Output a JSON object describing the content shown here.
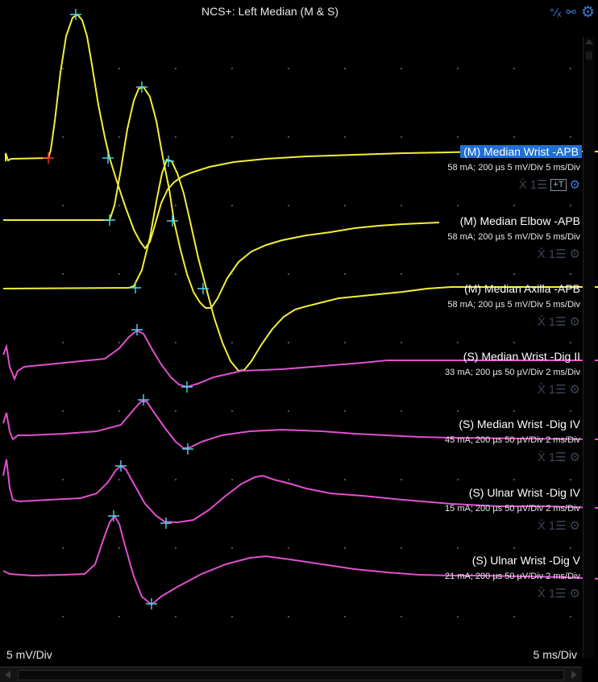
{
  "window": {
    "title": "NCS+: Left Median (M & S)"
  },
  "top_icons": [
    "cursor-plus-icon",
    "link-icon",
    "gear-icon"
  ],
  "colors": {
    "motor": "#f2ef3a",
    "sensory": "#e14fcf",
    "cursor": "#4fd6e8",
    "onset_mark": "#ff3030",
    "selected": "#1f6fd6"
  },
  "traces": [
    {
      "label": "(M)  Median  Wrist -APB",
      "params": "58 mA; 200 µs 5 mV/Div  5 ms/Div",
      "kind": "motor",
      "selected": true
    },
    {
      "label": "(M)  Median  Elbow -APB",
      "params": "58 mA; 200 µs 5 mV/Div  5 ms/Div",
      "kind": "motor",
      "selected": false
    },
    {
      "label": "(M)  Median  Axilla -APB",
      "params": "58 mA; 200 µs 5 mV/Div  5 ms/Div",
      "kind": "motor",
      "selected": false
    },
    {
      "label": "(S)  Median  Wrist -Dig II",
      "params": "33 mA; 200 µs 50 µV/Div  2 ms/Div",
      "kind": "sensory",
      "selected": false
    },
    {
      "label": "(S)  Median  Wrist -Dig IV",
      "params": "45 mA; 200 µs 50 µV/Div  2 ms/Div",
      "kind": "sensory",
      "selected": false
    },
    {
      "label": "(S)  Ulnar  Wrist -Dig IV",
      "params": "15 mA; 200 µs 50 µV/Div  2 ms/Div",
      "kind": "sensory",
      "selected": false
    },
    {
      "label": "(S)  Ulnar  Wrist -Dig V",
      "params": "21 mA; 200 µs 50 µV/Div  2 ms/Div",
      "kind": "sensory",
      "selected": false
    }
  ],
  "trace_tool_glyphs": {
    "x_icon": "X̄",
    "list_icon": "1☰",
    "t_icon": "+T",
    "gear_icon": "⚙"
  },
  "scale": {
    "left": "5 mV/Div",
    "right": "5 ms/Div"
  }
}
